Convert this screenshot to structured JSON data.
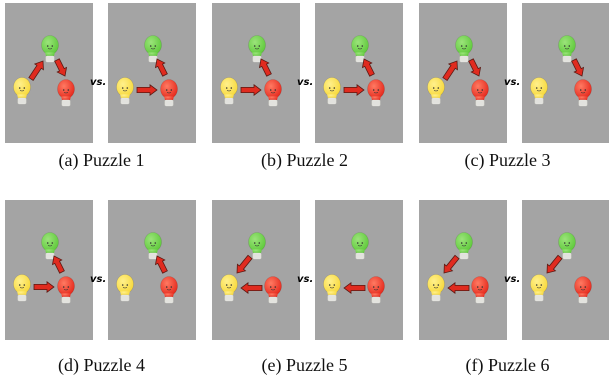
{
  "colors": {
    "panel_bg": "#a4a4a4",
    "green_bulb": "#5ec93a",
    "green_bulb_light": "#9be37a",
    "yellow_bulb": "#f7d83a",
    "yellow_bulb_light": "#fff08c",
    "red_bulb": "#e4281c",
    "red_bulb_light": "#ff7a62",
    "bulb_base": "#eeeeea",
    "arrow_fill": "#e02b1f",
    "arrow_stroke": "#5a1a14",
    "vs_text": "#000000",
    "caption_text": "#111111"
  },
  "vs_label": "vs.",
  "puzzles": [
    {
      "caption": "(a) Puzzle 1",
      "left_arrows": [
        "yellow-to-green",
        "green-to-red"
      ],
      "right_arrows": [
        "yellow-to-red",
        "red-to-green"
      ]
    },
    {
      "caption": "(b) Puzzle 2",
      "left_arrows": [
        "yellow-to-red",
        "red-to-green"
      ],
      "right_arrows": [
        "yellow-to-red",
        "red-to-green"
      ]
    },
    {
      "caption": "(c) Puzzle 3",
      "left_arrows": [
        "yellow-to-green",
        "green-to-red"
      ],
      "right_arrows": [
        "green-to-red"
      ]
    },
    {
      "caption": "(d) Puzzle 4",
      "left_arrows": [
        "yellow-to-red",
        "red-to-green"
      ],
      "right_arrows": [
        "red-to-green"
      ]
    },
    {
      "caption": "(e) Puzzle 5",
      "left_arrows": [
        "green-to-yellow",
        "red-to-yellow"
      ],
      "right_arrows": [
        "red-to-yellow"
      ]
    },
    {
      "caption": "(f) Puzzle 6",
      "left_arrows": [
        "green-to-yellow",
        "red-to-yellow"
      ],
      "right_arrows": [
        "green-to-yellow"
      ]
    }
  ]
}
